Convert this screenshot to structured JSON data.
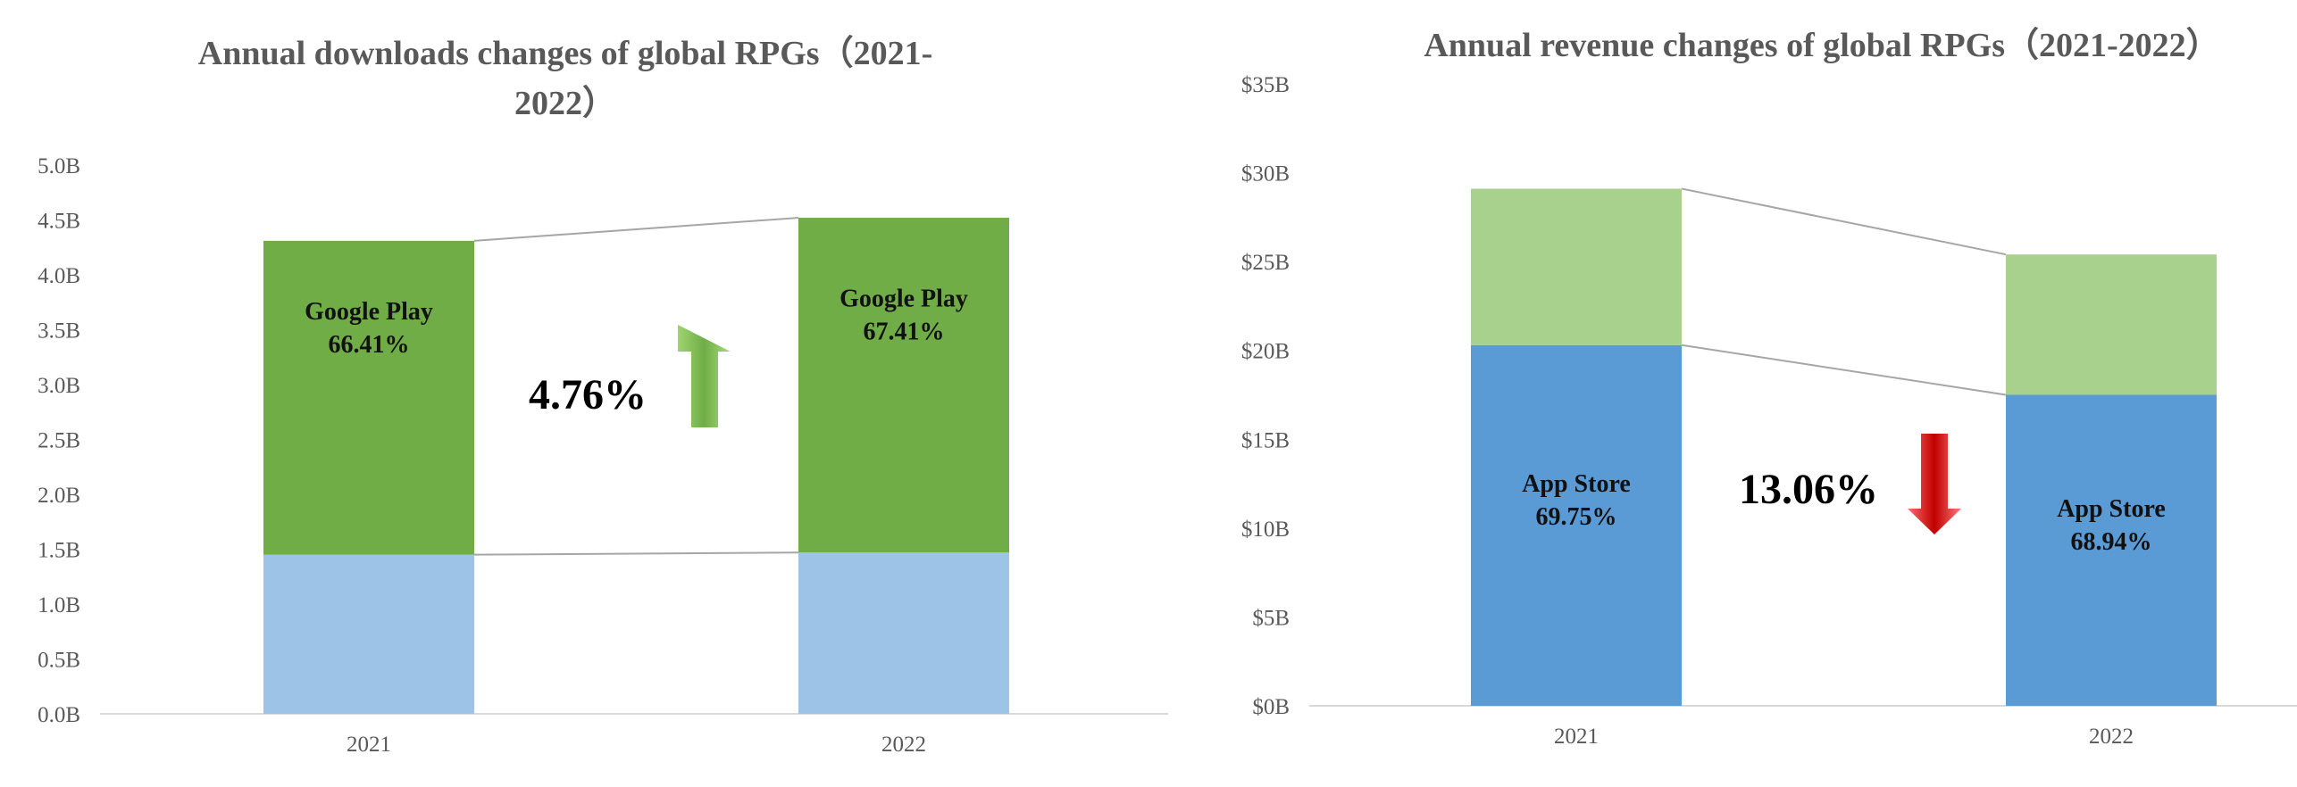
{
  "colors": {
    "text": "#595959",
    "axis": "#d9d9d9",
    "connector": "#a6a6a6",
    "google_play_downloads": "#70ad47",
    "app_store_downloads": "#9dc3e6",
    "app_store_revenue": "#5b9bd5",
    "google_play_revenue": "#a9d18e",
    "arrow_up": "#70ad47",
    "arrow_down": "#c00000"
  },
  "chart_data": [
    {
      "type": "bar",
      "stacked": true,
      "title_lines": [
        "Annual downloads changes of global RPGs（2021-",
        "2022）"
      ],
      "categories": [
        "2021",
        "2022"
      ],
      "ylim": [
        0,
        5.0
      ],
      "ytick_values": [
        0,
        0.5,
        1.0,
        1.5,
        2.0,
        2.5,
        3.0,
        3.5,
        4.0,
        4.5,
        5.0
      ],
      "ytick_labels": [
        "0.0B",
        "0.5B",
        "1.0B",
        "1.5B",
        "2.0B",
        "2.5B",
        "3.0B",
        "3.5B",
        "4.0B",
        "4.5B",
        "5.0B"
      ],
      "series": [
        {
          "values": [
            1.45,
            1.47
          ],
          "color": "#9dc3e6"
        },
        {
          "values": [
            2.86,
            3.05
          ],
          "color": "#70ad47",
          "labels": [
            [
              "Google Play",
              "66.41%"
            ],
            [
              "Google Play",
              "67.41%"
            ]
          ]
        }
      ],
      "change": {
        "text": "4.76%",
        "direction": "up"
      }
    },
    {
      "type": "bar",
      "stacked": true,
      "title_lines": [
        "Annual revenue changes of global RPGs（2021-2022）"
      ],
      "categories": [
        "2021",
        "2022"
      ],
      "ylim": [
        0,
        35
      ],
      "ytick_values": [
        0,
        5,
        10,
        15,
        20,
        25,
        30,
        35
      ],
      "ytick_labels": [
        "$0B",
        "$5B",
        "$10B",
        "$15B",
        "$20B",
        "$25B",
        "$30B",
        "$35B"
      ],
      "series": [
        {
          "values": [
            20.3,
            17.5
          ],
          "color": "#5b9bd5",
          "labels": [
            [
              "App Store",
              "69.75%"
            ],
            [
              "App Store",
              "68.94%"
            ]
          ]
        },
        {
          "values": [
            8.8,
            7.9
          ],
          "color": "#a9d18e"
        }
      ],
      "change": {
        "text": "13.06%",
        "direction": "down"
      }
    }
  ]
}
